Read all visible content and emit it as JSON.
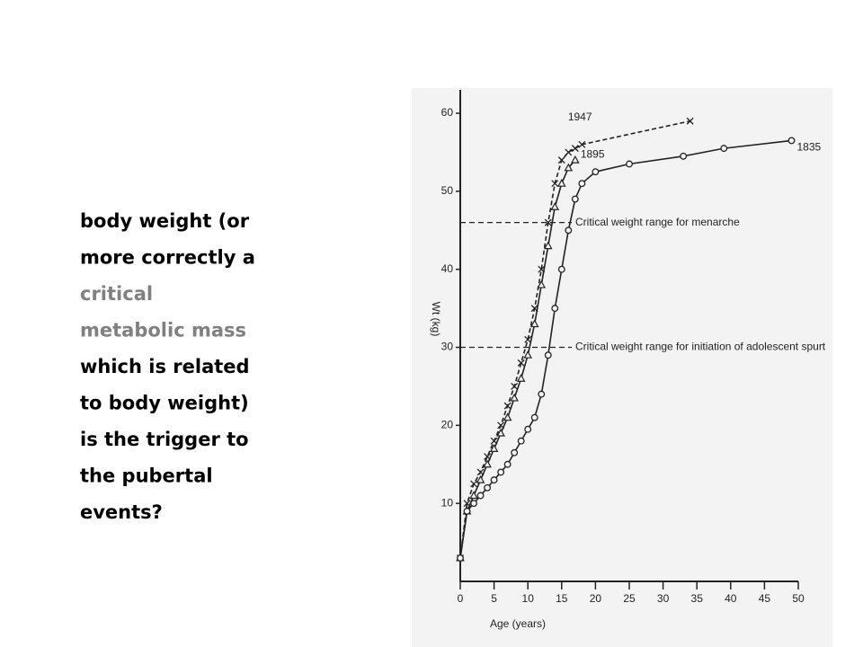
{
  "slide": {
    "text_lines": [
      {
        "text": "body weight (or",
        "color": "#000000"
      },
      {
        "text": "more correctly a",
        "color": "#000000"
      },
      {
        "text": "critical",
        "color": "#808080"
      },
      {
        "text": "metabolic mass",
        "color": "#808080"
      },
      {
        "text": "which is related",
        "color": "#000000"
      },
      {
        "text": "to body weight)",
        "color": "#000000"
      },
      {
        "text": "is the trigger to",
        "color": "#000000"
      },
      {
        "text": "the pubertal",
        "color": "#000000"
      },
      {
        "text": "events?",
        "color": "#000000"
      }
    ]
  },
  "chart_data": {
    "type": "line",
    "x_label": "Age (years)",
    "y_label": "Wt (kg)",
    "xlim": [
      0,
      50
    ],
    "ylim": [
      0,
      63
    ],
    "xticks": [
      0,
      5,
      10,
      15,
      20,
      25,
      30,
      35,
      40,
      45,
      50
    ],
    "yticks": [
      10,
      20,
      30,
      40,
      50,
      60
    ],
    "series": [
      {
        "name": "1947",
        "marker": "x",
        "color": "#222222",
        "x": [
          0,
          1,
          2,
          3,
          4,
          5,
          6,
          7,
          8,
          9,
          10,
          11,
          12,
          13,
          14,
          15,
          16,
          17,
          18,
          34
        ],
        "values": [
          3,
          10,
          12.5,
          14,
          16,
          18,
          20,
          22.5,
          25,
          28,
          31,
          35,
          40,
          46,
          51,
          54,
          55,
          55.5,
          56,
          59
        ]
      },
      {
        "name": "1895",
        "marker": "triangle",
        "color": "#222222",
        "x": [
          0,
          1,
          2,
          3,
          4,
          5,
          6,
          7,
          8,
          9,
          10,
          11,
          12,
          13,
          14,
          15,
          16,
          17
        ],
        "values": [
          3,
          9,
          11,
          13,
          15,
          17,
          19,
          21,
          23.5,
          26,
          29,
          33,
          38,
          43,
          48,
          51,
          53,
          54
        ]
      },
      {
        "name": "1835",
        "marker": "circle",
        "color": "#222222",
        "x": [
          0,
          1,
          2,
          3,
          4,
          5,
          6,
          7,
          8,
          9,
          10,
          11,
          12,
          13,
          14,
          15,
          16,
          17,
          18,
          20,
          25,
          33,
          39,
          49
        ],
        "values": [
          3,
          9,
          10,
          11,
          12,
          13,
          14,
          15,
          16.5,
          18,
          19.5,
          21,
          24,
          29,
          35,
          40,
          45,
          49,
          51,
          52.5,
          53.5,
          54.5,
          55.5,
          56.5
        ]
      }
    ],
    "reference_lines": [
      {
        "value": 46,
        "label": "Critical weight range for menarche"
      },
      {
        "value": 30,
        "label": "Critical weight range for initiation of adolescent spurt"
      }
    ]
  }
}
